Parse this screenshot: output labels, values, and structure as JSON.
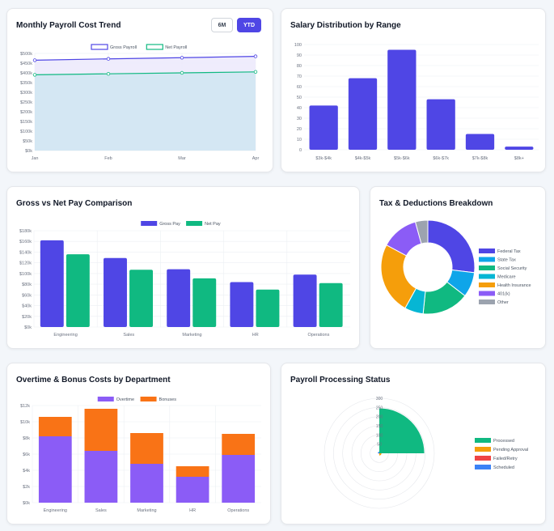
{
  "cards": {
    "payroll_trend": {
      "title": "Monthly Payroll Cost Trend",
      "buttons": [
        {
          "label": "6M",
          "active": false
        },
        {
          "label": "YTD",
          "active": true
        }
      ]
    },
    "salary_dist": {
      "title": "Salary Distribution by Range"
    },
    "gross_net": {
      "title": "Gross vs Net Pay Comparison"
    },
    "tax": {
      "title": "Tax & Deductions Breakdown"
    },
    "overtime": {
      "title": "Overtime & Bonus Costs by Department"
    },
    "processing": {
      "title": "Payroll Processing Status"
    }
  },
  "chart_data": [
    {
      "id": "payroll_trend",
      "type": "line",
      "x": [
        "Jan",
        "Feb",
        "Mar",
        "Apr"
      ],
      "series": [
        {
          "name": "Gross Payroll",
          "values": [
            465000,
            472000,
            478000,
            485000
          ],
          "color": "#4f46e5",
          "fill": "#ece9fb"
        },
        {
          "name": "Net Payroll",
          "values": [
            390000,
            395000,
            400000,
            405000
          ],
          "color": "#10b981",
          "fill": "#cfe6f1"
        }
      ],
      "yticks": [
        "$0k",
        "$50k",
        "$100k",
        "$150k",
        "$200k",
        "$250k",
        "$300k",
        "$350k",
        "$400k",
        "$450k",
        "$500k"
      ],
      "ylim": [
        0,
        500000
      ],
      "legend": "top"
    },
    {
      "id": "salary_dist",
      "type": "bar",
      "categories": [
        "$3k-$4k",
        "$4k-$5k",
        "$5k-$6k",
        "$6k-$7k",
        "$7k-$8k",
        "$8k+"
      ],
      "values": [
        42,
        68,
        95,
        48,
        15,
        3
      ],
      "color": "#4f46e5",
      "yticks": [
        "0",
        "10",
        "20",
        "30",
        "40",
        "50",
        "60",
        "70",
        "80",
        "90",
        "100"
      ],
      "ylim": [
        0,
        100
      ]
    },
    {
      "id": "gross_net",
      "type": "bar",
      "categories": [
        "Engineering",
        "Sales",
        "Marketing",
        "HR",
        "Operations"
      ],
      "series": [
        {
          "name": "Gross Pay",
          "values": [
            162000,
            129000,
            108000,
            84000,
            98000
          ],
          "color": "#4f46e5"
        },
        {
          "name": "Net Pay",
          "values": [
            136000,
            107000,
            91000,
            70000,
            82000
          ],
          "color": "#10b981"
        }
      ],
      "yticks": [
        "$0k",
        "$20k",
        "$40k",
        "$60k",
        "$80k",
        "$100k",
        "$120k",
        "$140k",
        "$160k",
        "$180k"
      ],
      "ylim": [
        0,
        180000
      ],
      "legend": "top"
    },
    {
      "id": "tax",
      "type": "pie",
      "donut": true,
      "labels": [
        "Federal Tax",
        "State Tax",
        "Social Security",
        "Medicare",
        "Health Insurance",
        "401(k)",
        "Other"
      ],
      "values": [
        25,
        8,
        15,
        6,
        23,
        12,
        4
      ],
      "colors": [
        "#4f46e5",
        "#0ea5e9",
        "#10b981",
        "#06b6d4",
        "#f59e0b",
        "#8b5cf6",
        "#9ca3af"
      ],
      "legend": "right"
    },
    {
      "id": "overtime",
      "type": "bar",
      "stacked": true,
      "categories": [
        "Engineering",
        "Sales",
        "Marketing",
        "HR",
        "Operations"
      ],
      "series": [
        {
          "name": "Overtime",
          "values": [
            8200,
            6400,
            4800,
            3200,
            5900
          ],
          "color": "#8b5cf6"
        },
        {
          "name": "Bonuses",
          "values": [
            2400,
            5200,
            3800,
            1300,
            2600
          ],
          "color": "#f97316"
        }
      ],
      "yticks": [
        "$0k",
        "$2k",
        "$4k",
        "$6k",
        "$8k",
        "$10k",
        "$12k"
      ],
      "ylim": [
        0,
        12000
      ],
      "legend": "top"
    },
    {
      "id": "processing",
      "type": "polarArea",
      "labels": [
        "Processed",
        "Pending Approval",
        "Failed/Retry",
        "Scheduled"
      ],
      "values": [
        245,
        12,
        3,
        8
      ],
      "colors": [
        "#10b981",
        "#f59e0b",
        "#ef4444",
        "#3b82f6"
      ],
      "rticks": [
        "300",
        "250",
        "200",
        "150",
        "100",
        "50"
      ],
      "rlim": [
        0,
        300
      ],
      "legend": "right"
    }
  ]
}
